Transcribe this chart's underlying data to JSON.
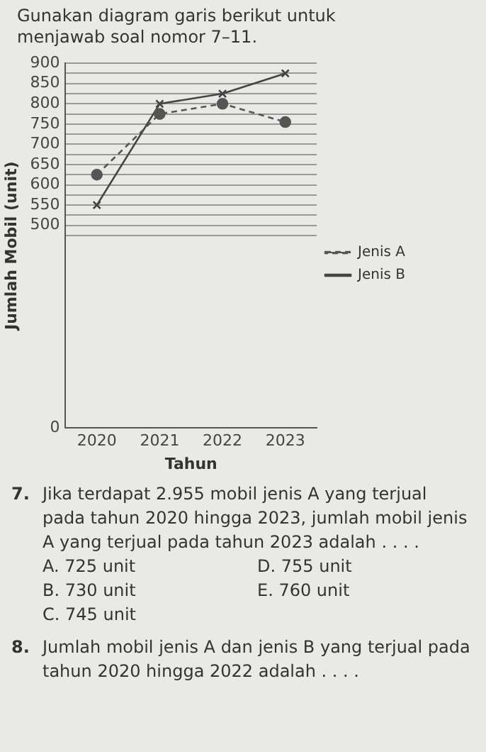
{
  "chart_data": {
    "type": "line",
    "title": "Gunakan diagram garis berikut untuk menjawab soal nomor 7–11.",
    "xlabel": "Tahun",
    "ylabel": "Jumlah Mobil (unit)",
    "categories": [
      "2020",
      "2021",
      "2022",
      "2023"
    ],
    "series": [
      {
        "name": "Jenis A",
        "color": "#555555",
        "values": [
          625,
          775,
          800,
          755
        ],
        "marker": "circle",
        "line_style": "dashed"
      },
      {
        "name": "Jenis B",
        "color": "#444444",
        "values": [
          550,
          800,
          825,
          875
        ],
        "marker": "cross",
        "line_style": "solid"
      }
    ],
    "ylim": [
      0,
      900
    ],
    "yticks": [
      0,
      {
        "value": 475,
        "label": null
      },
      500,
      {
        "value": 525,
        "label": null
      },
      550,
      {
        "value": 575,
        "label": null
      },
      600,
      {
        "value": 625,
        "label": null
      },
      650,
      {
        "value": 675,
        "label": null
      },
      700,
      {
        "value": 725,
        "label": null
      },
      750,
      {
        "value": 775,
        "label": null
      },
      800,
      {
        "value": 825,
        "label": null
      },
      850,
      {
        "value": 875,
        "label": null
      },
      900
    ],
    "grid": "y",
    "legend": "right",
    "annotations": [
      "7. Jika terdapat 2.955 mobil jenis A yang terjual pada tahun 2020 hingga 2023, jumlah mobil jenis A yang terjual pada tahun 2023 adalah . . . .",
      "A. 725 unit",
      "D. 755 unit",
      "B. 730 unit",
      "E. 760 unit",
      "C. 745 unit",
      "8. Jumlah mobil jenis A dan jenis B yang terjual pada tahun 2020 hingga 2022 adalah . . . ."
    ]
  }
}
